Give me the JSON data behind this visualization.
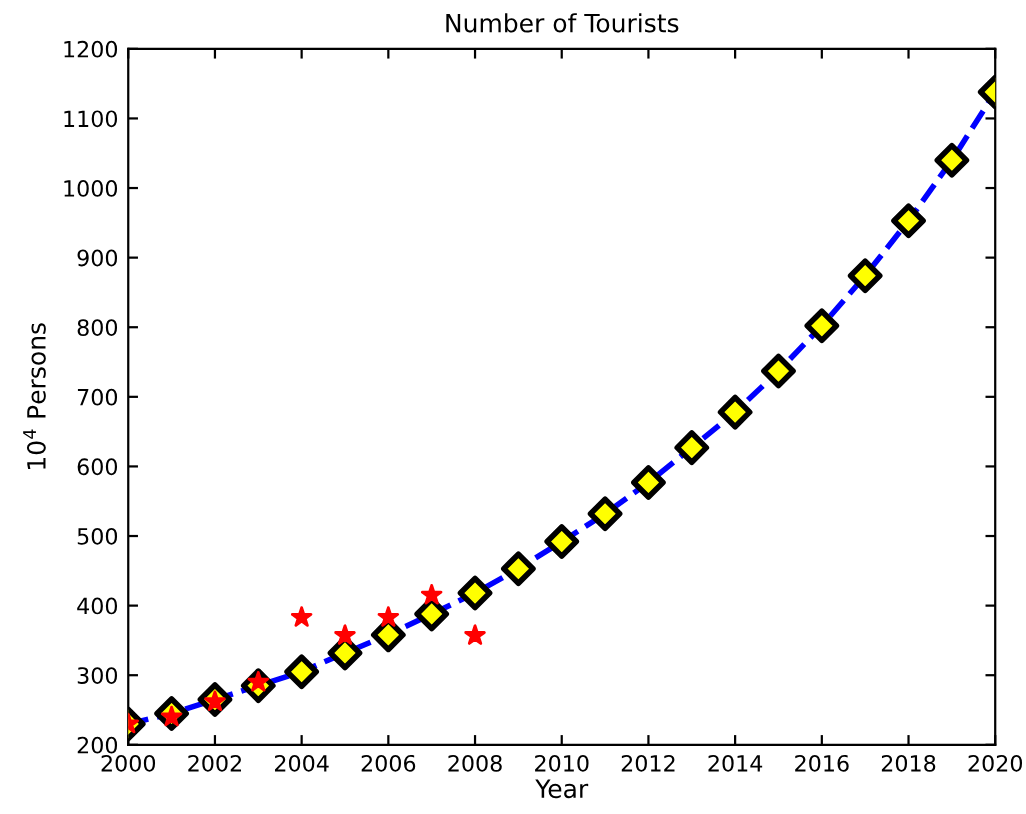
{
  "chart_data": {
    "type": "line",
    "title": "Number of Tourists",
    "xlabel": "Year",
    "ylabel": "10$^{4}$ Persons",
    "xlim": [
      2000,
      2020
    ],
    "xticks": [
      2000,
      2002,
      2004,
      2006,
      2008,
      2010,
      2012,
      2014,
      2016,
      2018,
      2020
    ],
    "ylim": [
      200,
      1200
    ],
    "yticks": [
      200,
      300,
      400,
      500,
      600,
      700,
      800,
      900,
      1000,
      1100,
      1200
    ],
    "grid": false,
    "series": [
      {
        "line_style": "dashed",
        "marker": "none",
        "color": "#0000ff",
        "x": [
          2000,
          2001,
          2002,
          2003,
          2004,
          2005,
          2006,
          2007,
          2008,
          2009,
          2010,
          2011,
          2012,
          2013,
          2014,
          2015,
          2016,
          2017,
          2018,
          2019,
          2020
        ],
        "values": [
          230,
          245,
          265,
          285,
          305,
          332,
          358,
          388,
          418,
          453,
          492,
          532,
          577,
          627,
          678,
          737,
          802,
          874,
          953,
          1040,
          1138
        ]
      },
      {
        "type": "scatter",
        "marker": "diamond",
        "color": "#ffff00",
        "x": [
          2000,
          2001,
          2002,
          2003,
          2004,
          2005,
          2006,
          2007,
          2008,
          2009,
          2010,
          2011,
          2012,
          2013,
          2014,
          2015,
          2016,
          2017,
          2018,
          2019,
          2020
        ],
        "values": [
          230,
          245,
          265,
          285,
          305,
          332,
          358,
          388,
          418,
          453,
          492,
          532,
          577,
          627,
          678,
          737,
          802,
          874,
          953,
          1040,
          1138
        ]
      },
      {
        "type": "scatter",
        "marker": "star",
        "color": "#ff0000",
        "x": [
          2000,
          2001,
          2002,
          2003,
          2004,
          2005,
          2006,
          2007,
          2008
        ],
        "values": [
          230,
          240,
          262,
          290,
          383,
          357,
          383,
          415,
          357
        ]
      }
    ]
  }
}
